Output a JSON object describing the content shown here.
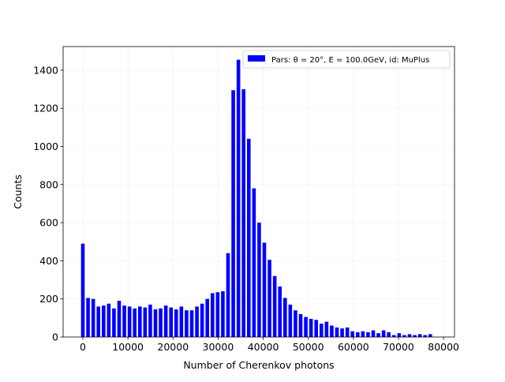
{
  "chart_data": {
    "type": "histogram",
    "xlabel": "Number of Cherenkov photons",
    "ylabel": "Counts",
    "bins": [
      -575,
      575,
      1725,
      2875,
      4025,
      5175,
      6325,
      7475,
      8625,
      9775,
      10925,
      12075,
      13225,
      14375,
      15525,
      16675,
      17825,
      18975,
      20125,
      21275,
      22425,
      23575,
      24725,
      25875,
      27025,
      28175,
      29325,
      30475,
      31625,
      32775,
      33925,
      35075,
      36225,
      37375,
      38525,
      39675,
      40825,
      41975,
      43125,
      44275,
      45425,
      46575,
      47725,
      48875,
      50025,
      51175,
      52325,
      53475,
      54625,
      55775,
      56925,
      58075,
      59225,
      60375,
      61525,
      62675,
      63825,
      64975,
      66125,
      67275,
      68425,
      69575,
      70725,
      71875,
      73025,
      74175,
      75325,
      76475,
      77625
    ],
    "series": [
      {
        "name": "Pars: θ = 20°, E = 100.0GeV, id: MuPlus",
        "color": "#0000ff",
        "values": [
          490,
          205,
          200,
          160,
          165,
          175,
          150,
          190,
          165,
          160,
          150,
          160,
          155,
          170,
          145,
          150,
          165,
          155,
          145,
          160,
          140,
          140,
          160,
          175,
          200,
          230,
          235,
          240,
          440,
          1295,
          1455,
          1300,
          1040,
          780,
          600,
          495,
          405,
          320,
          265,
          205,
          170,
          140,
          120,
          105,
          95,
          90,
          70,
          80,
          60,
          50,
          45,
          50,
          30,
          25,
          30,
          25,
          35,
          20,
          35,
          25,
          10,
          20,
          10,
          15,
          10,
          15,
          10,
          15
        ]
      }
    ],
    "xlim": [
      -4375,
      82425
    ],
    "ylim": [
      0,
      1524
    ],
    "xticks": [
      0,
      10000,
      20000,
      30000,
      40000,
      50000,
      60000,
      70000,
      80000
    ],
    "yticks": [
      0,
      200,
      400,
      600,
      800,
      1000,
      1200,
      1400
    ],
    "grid": true,
    "legend": "upper right"
  }
}
